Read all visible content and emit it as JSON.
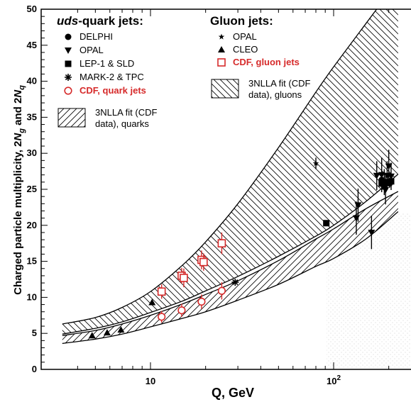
{
  "chart_data": {
    "type": "scatter",
    "xlabel": "Q, GeV",
    "ylabel": "Charged particle multiplicity, 2N_g and 2N_q",
    "ylabel_parts": [
      "Charged particle multiplicity, 2",
      "N",
      "g",
      " and 2",
      "N",
      "q"
    ],
    "xscale": "log",
    "xlim": [
      3.3,
      225
    ],
    "ylim": [
      0,
      50
    ],
    "yticks": [
      0,
      5,
      10,
      15,
      20,
      25,
      30,
      35,
      40,
      45,
      50
    ],
    "ytick_labels": [
      "0",
      "5",
      "10",
      "15",
      "20",
      "25",
      "30",
      "35",
      "40",
      "45",
      "50"
    ],
    "xtick_labels": [
      {
        "base": "10",
        "exp": ""
      },
      {
        "base": "10",
        "exp": "2"
      }
    ],
    "legend_left": {
      "title_italic": "uds",
      "title_rest": "-quark jets:",
      "items": [
        {
          "marker": "circle",
          "label": "DELPHI"
        },
        {
          "marker": "triangle-down",
          "label": "OPAL"
        },
        {
          "marker": "square",
          "label": "LEP-1 & SLD"
        },
        {
          "marker": "asterisk",
          "label": "MARK-2 & TPC"
        },
        {
          "marker": "open-circle-red",
          "label": "CDF, quark jets"
        },
        {
          "marker": "band",
          "label": "3NLLA fit (CDF",
          "label2": "data), quarks"
        }
      ]
    },
    "legend_right": {
      "title": "Gluon jets:",
      "items": [
        {
          "marker": "star",
          "label": "OPAL"
        },
        {
          "marker": "triangle-up",
          "label": "CLEO"
        },
        {
          "marker": "open-square-red",
          "label": "CDF, gluon jets"
        },
        {
          "marker": "band",
          "label": "3NLLA fit (CDF",
          "label2": "data), gluons"
        }
      ]
    },
    "series": [
      {
        "name": "CDF, quark jets",
        "marker": "open-circle-red",
        "points": [
          [
            11.5,
            7.3,
            0.8
          ],
          [
            14.8,
            8.2,
            0.9
          ],
          [
            19.0,
            9.4,
            1.0
          ],
          [
            24.5,
            10.9,
            1.2
          ]
        ]
      },
      {
        "name": "CDF, gluon jets",
        "marker": "open-square-red",
        "points": [
          [
            11.5,
            10.8,
            1.0
          ],
          [
            14.8,
            13.0,
            1.1
          ],
          [
            15.2,
            12.7,
            1.3
          ],
          [
            19.0,
            15.2,
            1.3
          ],
          [
            19.5,
            14.9,
            1.2
          ],
          [
            24.5,
            17.5,
            1.5
          ]
        ]
      },
      {
        "name": "CLEO",
        "marker": "triangle-up",
        "points": [
          [
            4.8,
            4.7,
            0
          ],
          [
            5.8,
            5.1,
            0
          ],
          [
            6.9,
            5.5,
            0
          ],
          [
            10.2,
            9.3,
            0
          ]
        ]
      },
      {
        "name": "MARK-2 & TPC",
        "marker": "asterisk",
        "points": [
          [
            29.0,
            12.1,
            0
          ]
        ]
      },
      {
        "name": "OPAL gluon",
        "marker": "star",
        "points": [
          [
            80.0,
            28.6,
            0.8
          ]
        ]
      },
      {
        "name": "LEP-1 & SLD",
        "marker": "square",
        "points": [
          [
            91.2,
            20.3,
            0
          ],
          [
            183,
            25.8,
            0
          ],
          [
            189,
            25.4,
            0
          ],
          [
            196,
            26.0,
            0
          ],
          [
            200,
            25.9,
            0
          ],
          [
            206,
            26.1,
            0
          ]
        ]
      },
      {
        "name": "DELPHI",
        "marker": "circle",
        "points": [
          [
            183,
            26.3,
            0.6
          ],
          [
            202,
            25.8,
            0.6
          ]
        ]
      },
      {
        "name": "OPAL quark",
        "marker": "triangle-down",
        "points": [
          [
            133,
            21.0,
            2.3
          ],
          [
            136,
            22.8,
            2.3
          ],
          [
            161,
            19.0,
            2.3
          ],
          [
            172,
            26.9,
            2.0
          ],
          [
            183,
            27.0,
            2.4
          ],
          [
            189,
            26.0,
            1.8
          ],
          [
            192,
            24.9,
            2.0
          ],
          [
            196,
            26.9,
            2.0
          ],
          [
            200,
            28.2,
            2.3
          ],
          [
            206,
            26.8,
            1.9
          ]
        ]
      }
    ],
    "bands": [
      {
        "name": "3NLLA fit (CDF data), gluons",
        "pattern": "backslash",
        "upper": [
          [
            3.3,
            6.3
          ],
          [
            5,
            7.2
          ],
          [
            7,
            8.6
          ],
          [
            10,
            10.8
          ],
          [
            15,
            14.5
          ],
          [
            20,
            17.7
          ],
          [
            30,
            23.0
          ],
          [
            50,
            30.8
          ],
          [
            80,
            38.5
          ],
          [
            100,
            42.0
          ],
          [
            150,
            48.0
          ],
          [
            225,
            54.0
          ]
        ],
        "lower": [
          [
            3.3,
            4.9
          ],
          [
            5,
            5.7
          ],
          [
            7,
            6.6
          ],
          [
            10,
            7.9
          ],
          [
            15,
            9.5
          ],
          [
            20,
            10.9
          ],
          [
            30,
            12.9
          ],
          [
            50,
            15.7
          ],
          [
            80,
            18.5
          ],
          [
            100,
            20.0
          ],
          [
            150,
            23.3
          ],
          [
            225,
            27.1
          ]
        ]
      },
      {
        "name": "3NLLA fit (CDF data), quarks",
        "pattern": "slash",
        "upper": [
          [
            3.3,
            4.7
          ],
          [
            5,
            5.4
          ],
          [
            7,
            6.3
          ],
          [
            10,
            7.5
          ],
          [
            15,
            9.1
          ],
          [
            20,
            10.4
          ],
          [
            30,
            12.3
          ],
          [
            50,
            15.1
          ],
          [
            80,
            18.1
          ],
          [
            100,
            19.5
          ],
          [
            150,
            22.3
          ],
          [
            225,
            24.7
          ]
        ],
        "lower": [
          [
            3.3,
            3.6
          ],
          [
            5,
            4.2
          ],
          [
            7,
            4.9
          ],
          [
            10,
            5.9
          ],
          [
            15,
            7.1
          ],
          [
            20,
            8.0
          ],
          [
            30,
            9.6
          ],
          [
            50,
            11.8
          ],
          [
            80,
            14.3
          ],
          [
            100,
            15.4
          ],
          [
            150,
            18.1
          ],
          [
            225,
            21.9
          ]
        ]
      }
    ]
  }
}
